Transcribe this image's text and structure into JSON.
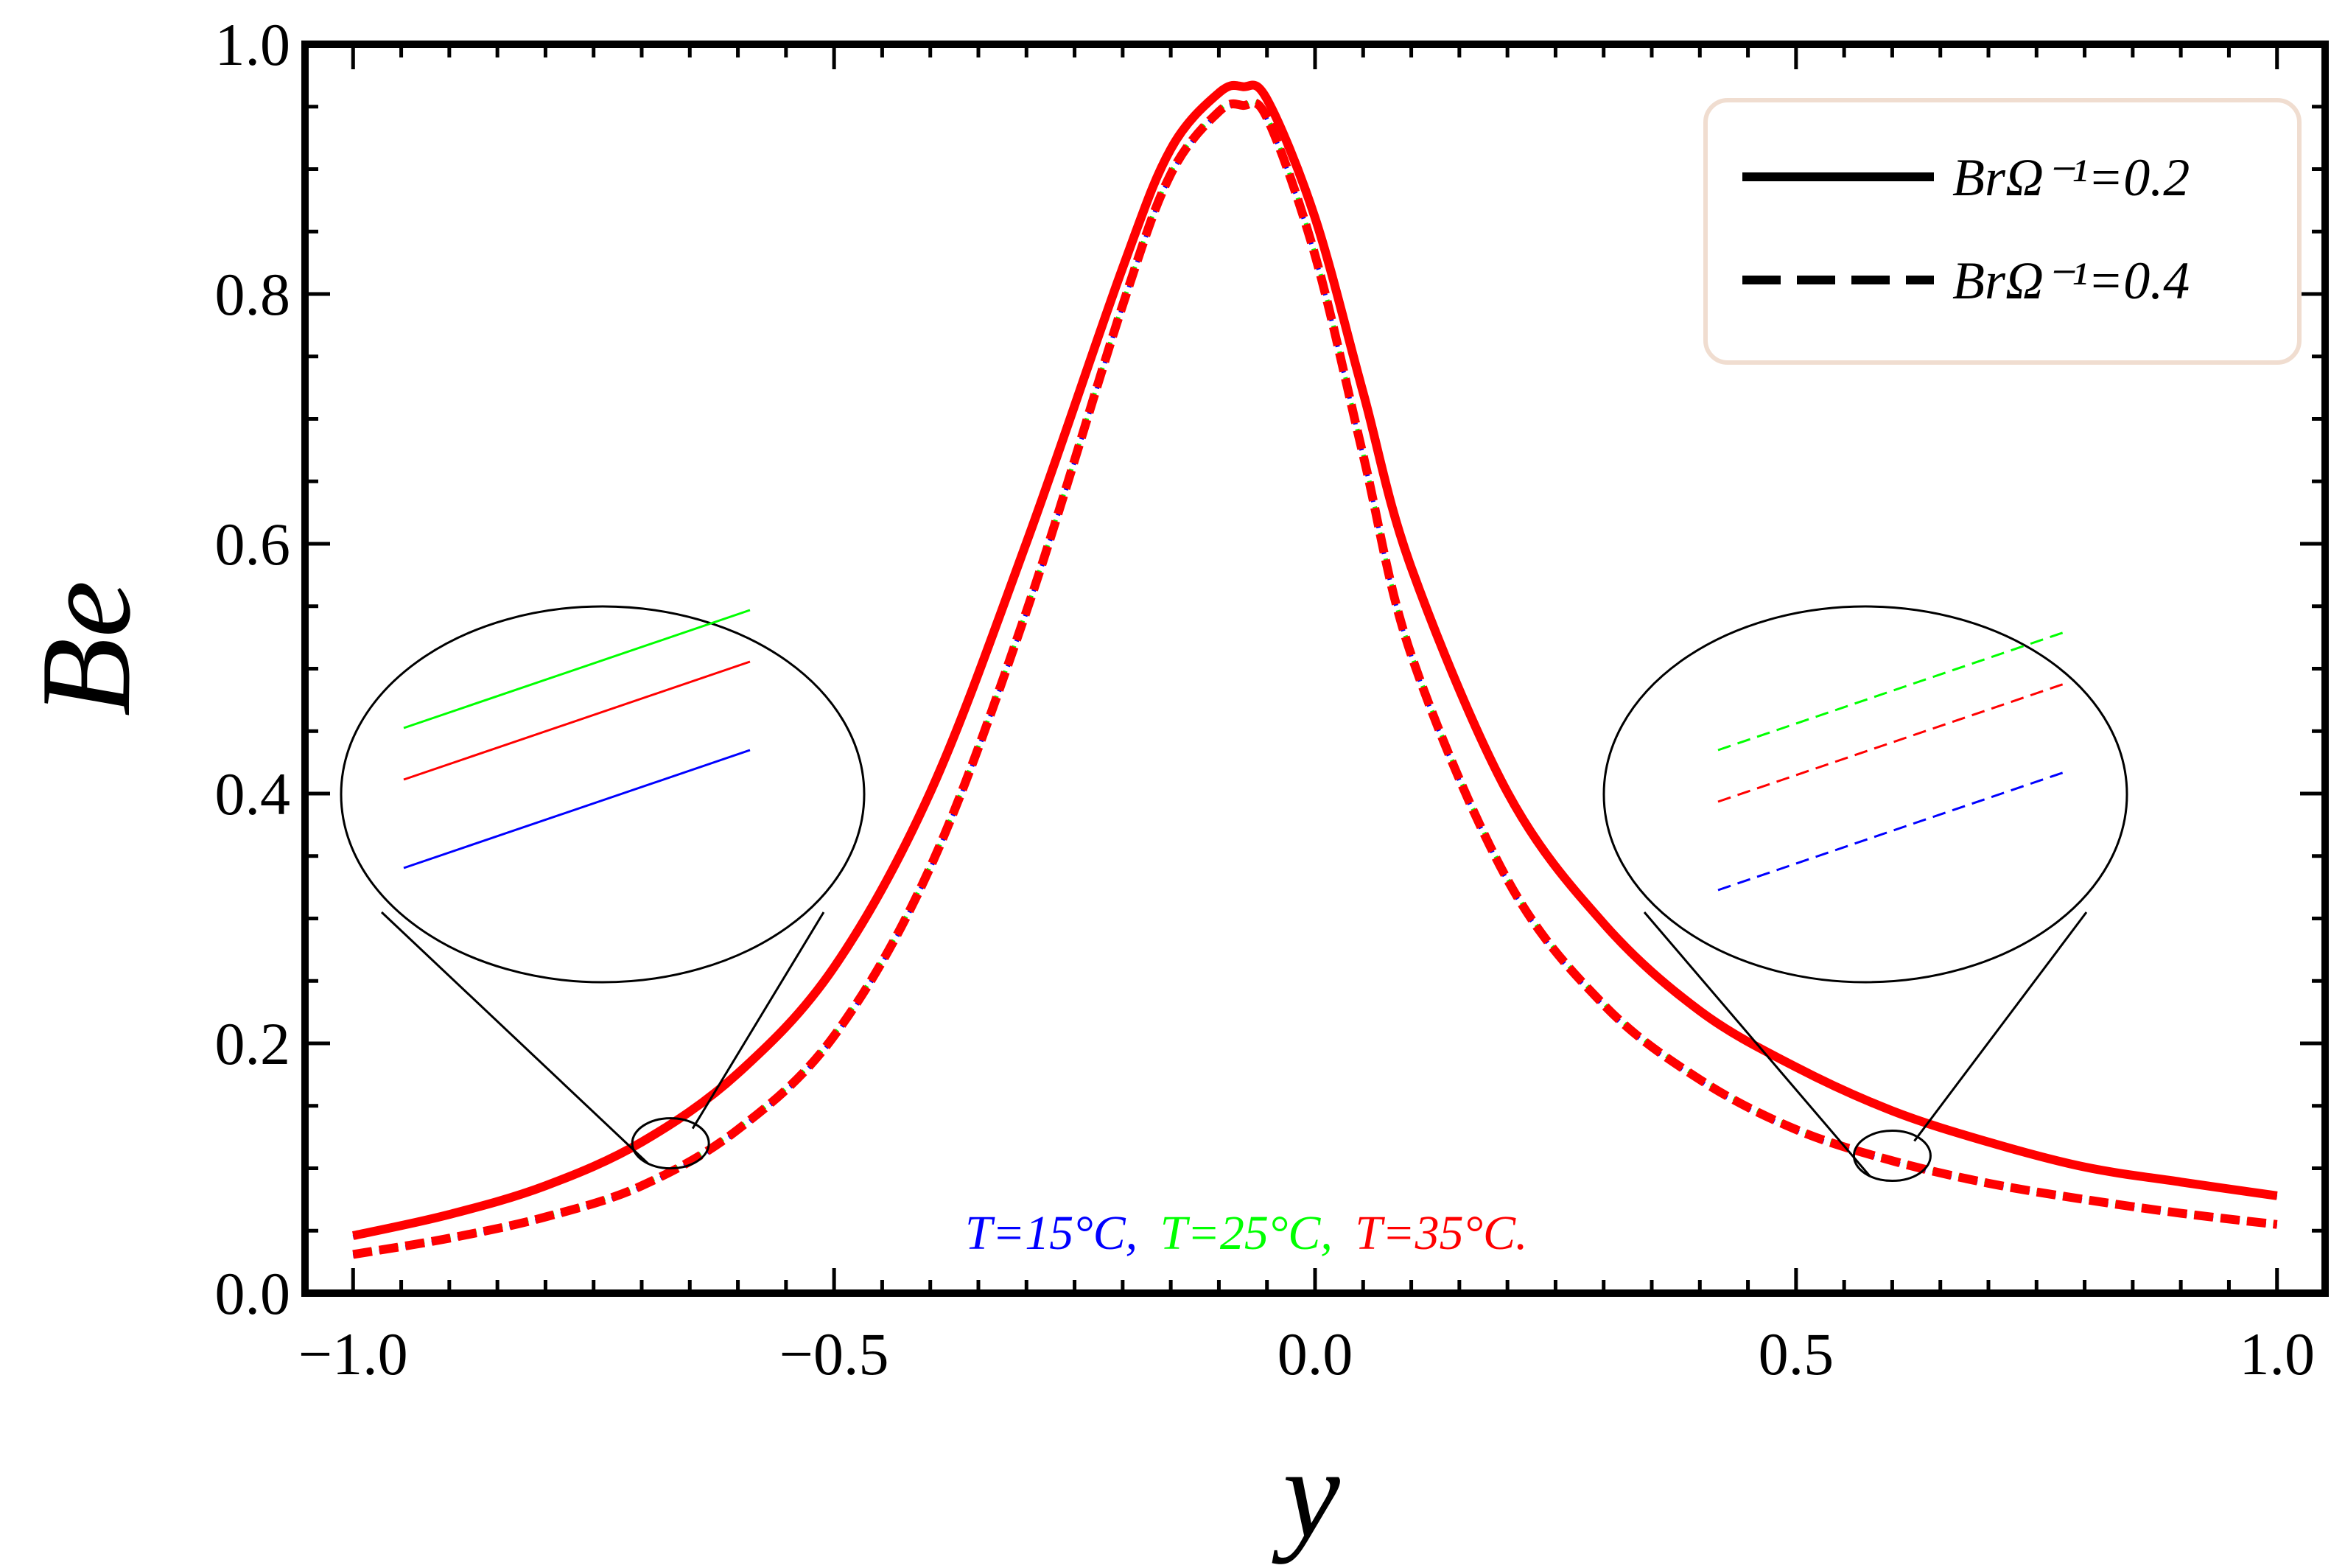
{
  "chart_data": {
    "type": "line",
    "title": "",
    "xlabel": "y",
    "ylabel": "Be",
    "xlim": [
      -1.05,
      1.05
    ],
    "ylim": [
      0.0,
      1.0
    ],
    "xticks": [
      -1.0,
      -0.5,
      0.0,
      0.5,
      1.0
    ],
    "xtick_labels": [
      "−1.0",
      "−0.5",
      "0.0",
      "0.5",
      "1.0"
    ],
    "yticks": [
      0.0,
      0.2,
      0.4,
      0.6,
      0.8,
      1.0
    ],
    "ytick_labels": [
      "0.0",
      "0.2",
      "0.4",
      "0.6",
      "0.8",
      "1.0"
    ],
    "grid": false,
    "x": [
      -1.0,
      -0.9,
      -0.8,
      -0.7,
      -0.6,
      -0.5,
      -0.4,
      -0.3,
      -0.2,
      -0.15,
      -0.1,
      -0.075,
      -0.05,
      0.0,
      0.05,
      0.1,
      0.2,
      0.3,
      0.4,
      0.5,
      0.6,
      0.7,
      0.8,
      0.9,
      1.0
    ],
    "series": [
      {
        "name": "T=15°C, BrΩ⁻¹=0.2",
        "color": "#0000ff",
        "dash": "solid",
        "values": [
          0.045,
          0.062,
          0.085,
          0.12,
          0.175,
          0.26,
          0.4,
          0.6,
          0.82,
          0.915,
          0.96,
          0.965,
          0.955,
          0.86,
          0.72,
          0.58,
          0.4,
          0.295,
          0.225,
          0.18,
          0.145,
          0.12,
          0.1,
          0.088,
          0.077
        ]
      },
      {
        "name": "T=25°C, BrΩ⁻¹=0.2",
        "color": "#00ff00",
        "dash": "solid",
        "values": [
          0.047,
          0.064,
          0.087,
          0.122,
          0.177,
          0.262,
          0.402,
          0.602,
          0.822,
          0.917,
          0.962,
          0.967,
          0.957,
          0.862,
          0.722,
          0.582,
          0.402,
          0.297,
          0.227,
          0.182,
          0.147,
          0.122,
          0.102,
          0.09,
          0.079
        ]
      },
      {
        "name": "T=35°C, BrΩ⁻¹=0.2",
        "color": "#ff0000",
        "dash": "solid",
        "values": [
          0.046,
          0.063,
          0.086,
          0.121,
          0.176,
          0.261,
          0.401,
          0.601,
          0.821,
          0.916,
          0.961,
          0.966,
          0.956,
          0.861,
          0.721,
          0.581,
          0.401,
          0.296,
          0.226,
          0.181,
          0.146,
          0.121,
          0.101,
          0.089,
          0.078
        ]
      },
      {
        "name": "T=15°C, BrΩ⁻¹=0.4",
        "color": "#0000ff",
        "dash": "dashed",
        "values": [
          0.03,
          0.043,
          0.06,
          0.085,
          0.13,
          0.205,
          0.34,
          0.545,
          0.79,
          0.895,
          0.945,
          0.95,
          0.94,
          0.83,
          0.67,
          0.51,
          0.33,
          0.23,
          0.17,
          0.13,
          0.105,
          0.087,
          0.074,
          0.063,
          0.054
        ]
      },
      {
        "name": "T=25°C, BrΩ⁻¹=0.4",
        "color": "#00ff00",
        "dash": "dashed",
        "values": [
          0.032,
          0.045,
          0.062,
          0.087,
          0.132,
          0.207,
          0.342,
          0.547,
          0.792,
          0.897,
          0.947,
          0.952,
          0.942,
          0.832,
          0.672,
          0.512,
          0.332,
          0.232,
          0.172,
          0.132,
          0.107,
          0.089,
          0.076,
          0.065,
          0.056
        ]
      },
      {
        "name": "T=35°C, BrΩ⁻¹=0.4",
        "color": "#ff0000",
        "dash": "dashed",
        "values": [
          0.031,
          0.044,
          0.061,
          0.086,
          0.131,
          0.206,
          0.341,
          0.546,
          0.791,
          0.896,
          0.946,
          0.951,
          0.941,
          0.831,
          0.671,
          0.511,
          0.331,
          0.231,
          0.171,
          0.131,
          0.106,
          0.088,
          0.075,
          0.064,
          0.055
        ]
      }
    ],
    "legend": {
      "position": "top-right",
      "entries": [
        {
          "label": "BrΩ⁻¹=0.2",
          "dash": "solid"
        },
        {
          "label": "BrΩ⁻¹=0.4",
          "dash": "dashed"
        }
      ]
    },
    "annotations": [
      {
        "text": "T=15°C,",
        "color": "#0000ff"
      },
      {
        "text": "T=25°C,",
        "color": "#00ff00"
      },
      {
        "text": "T=35°C.",
        "color": "#ff0000"
      }
    ],
    "insets": [
      {
        "name": "left-zoom",
        "target_x": -0.67,
        "target_y": 0.12,
        "dash": "solid",
        "colors_top_to_bottom": [
          "#00ff00",
          "#ff0000",
          "#0000ff"
        ]
      },
      {
        "name": "right-zoom",
        "target_x": 0.6,
        "target_y": 0.11,
        "dash": "dashed",
        "colors_top_to_bottom": [
          "#00ff00",
          "#ff0000",
          "#0000ff"
        ]
      }
    ]
  }
}
